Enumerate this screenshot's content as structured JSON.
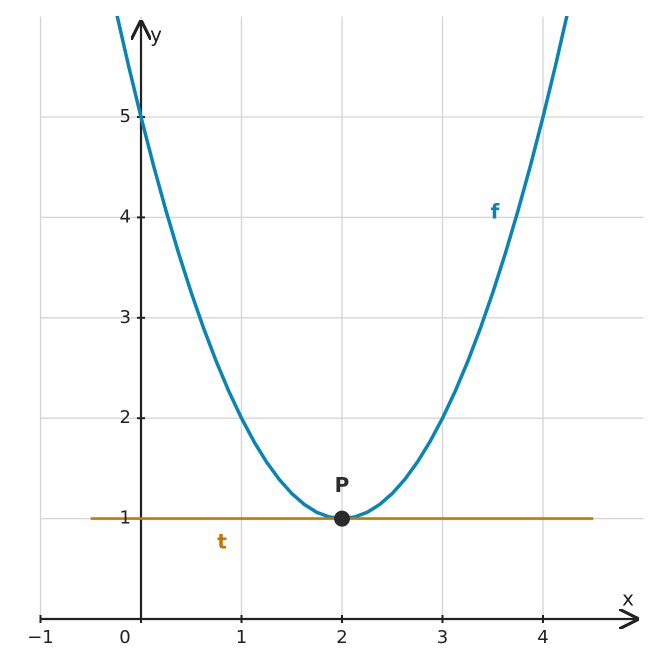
{
  "chart_data": {
    "type": "line",
    "x_label": "x",
    "y_label": "y",
    "xlim": [
      -1,
      4.97
    ],
    "ylim": [
      0,
      6
    ],
    "xticks": [
      {
        "value": -1,
        "label": "−1"
      },
      0,
      1,
      2,
      3,
      4
    ],
    "yticks": [
      1,
      2,
      3,
      4,
      5
    ],
    "grid": true,
    "series": [
      {
        "name": "f",
        "color": "#0a84b4",
        "x": [
          -0.25,
          -0.125,
          0,
          0.125,
          0.25,
          0.375,
          0.5,
          0.625,
          0.75,
          0.875,
          1,
          1.125,
          1.25,
          1.375,
          1.5,
          1.625,
          1.75,
          1.875,
          2,
          2.125,
          2.25,
          2.375,
          2.5,
          2.625,
          2.75,
          2.875,
          3,
          3.125,
          3.25,
          3.375,
          3.5,
          3.625,
          3.75,
          3.875,
          4,
          4.125,
          4.25
        ],
        "values": [
          6.0625,
          5.515625,
          5,
          4.515625,
          4.0625,
          3.640625,
          3.25,
          2.890625,
          2.5625,
          2.265625,
          2,
          1.765625,
          1.5625,
          1.390625,
          1.25,
          1.140625,
          1.0625,
          1.015625,
          1,
          1.015625,
          1.0625,
          1.140625,
          1.25,
          1.390625,
          1.5625,
          1.765625,
          2,
          2.265625,
          2.5625,
          2.890625,
          3.25,
          3.640625,
          4.0625,
          4.515625,
          5,
          5.515625,
          6.0625
        ]
      },
      {
        "name": "t",
        "color": "#c07800",
        "x": [
          -0.5,
          4.5
        ],
        "values": [
          1,
          1
        ]
      }
    ],
    "points": [
      {
        "name": "P",
        "x": 2,
        "y": 1,
        "color": "#2b2b2b"
      }
    ]
  }
}
